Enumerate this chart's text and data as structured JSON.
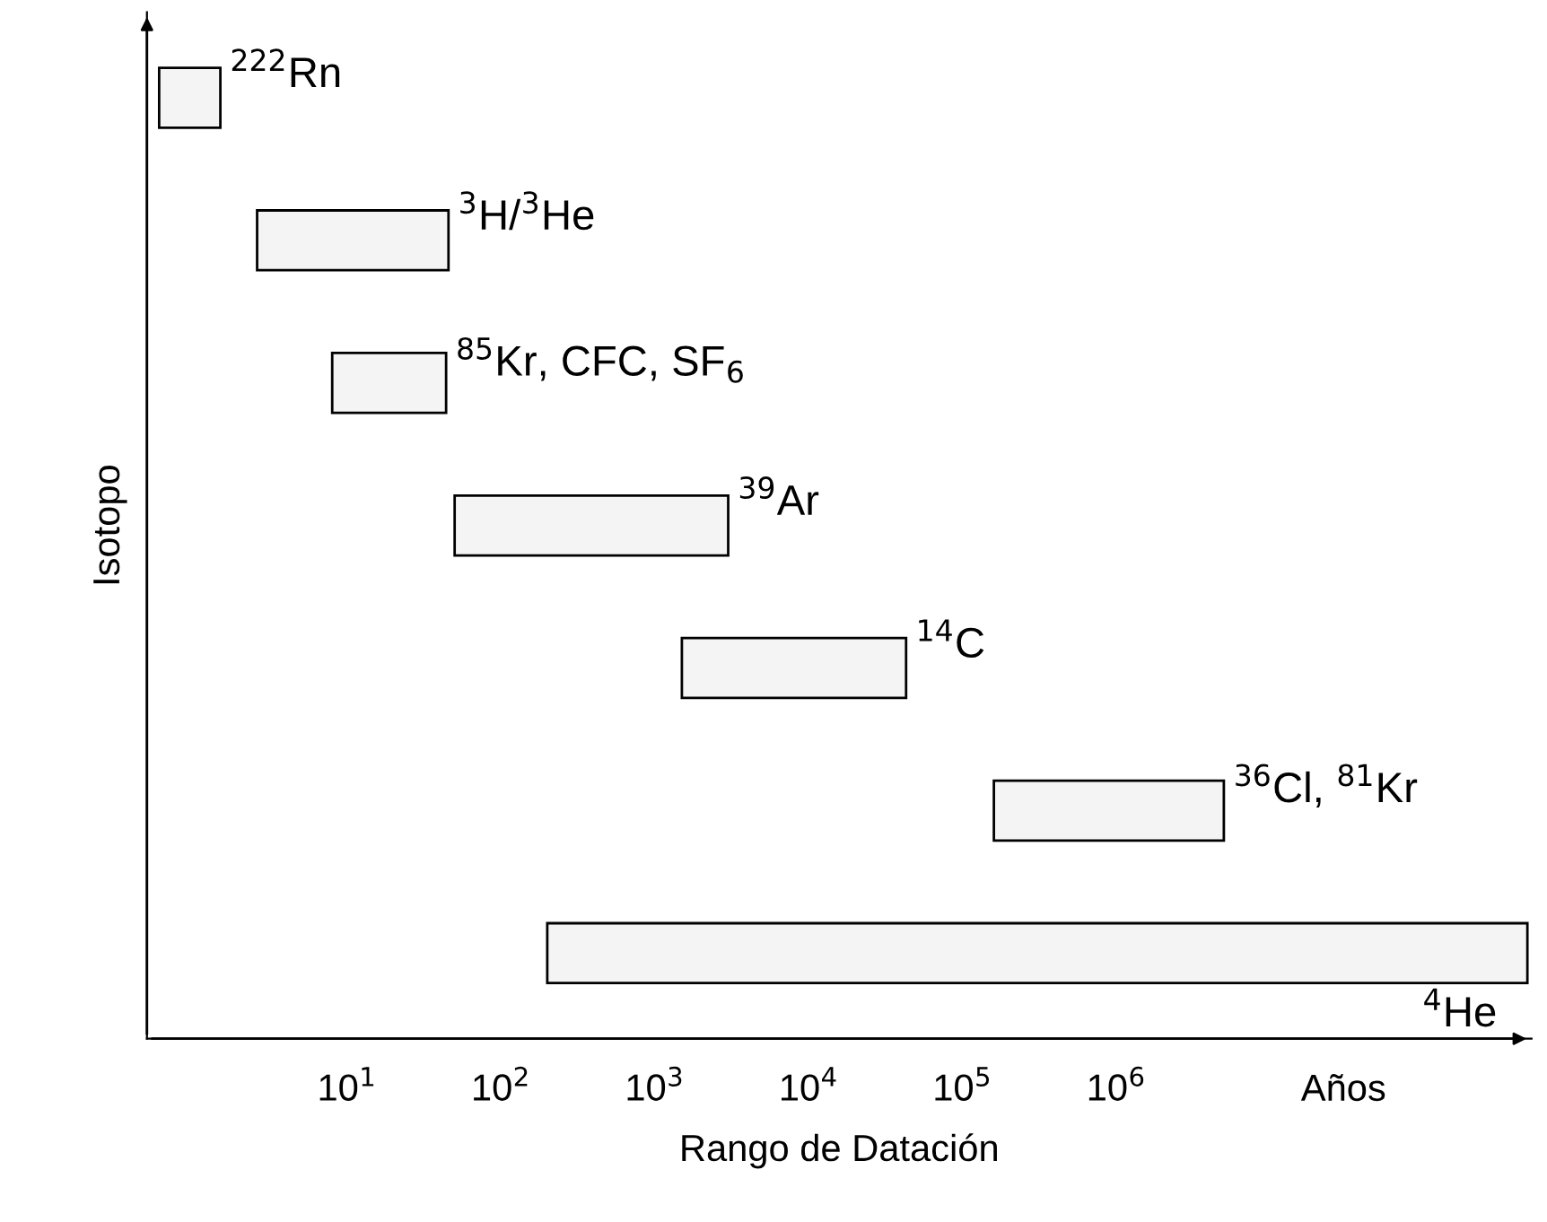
{
  "chart_data": {
    "type": "bar",
    "orientation": "horizontal",
    "log": "x",
    "xlabel": "Rango de Datación",
    "ylabel": "Isotopo",
    "categories": [
      "$^{222}$Rn",
      "$^{3}$H/$^{3}$He",
      "$^{85}$Kr, CFC, SF$_{6}$",
      "$^{39}$Ar",
      "$^{14}$C",
      "$^{36}$Cl, $^{81}$Kr",
      "$^{4}$He"
    ],
    "base": [
      0.6,
      2.6,
      8,
      50,
      1500,
      160000,
      200
    ],
    "values": [
      0.9,
      43,
      36,
      2950,
      41500,
      4840000,
      470000000
    ],
    "color": "#f4f4f4",
    "xlim": [
      0.5,
      500000000
    ],
    "xticks": [
      {
        "value": 10,
        "label": "10$^{1}$"
      },
      {
        "value": 100,
        "label": "10$^{2}$"
      },
      {
        "value": 1000,
        "label": "10$^{3}$"
      },
      {
        "value": 10000,
        "label": "10$^{4}$"
      },
      {
        "value": 100000,
        "label": "10$^{5}$"
      },
      {
        "value": 1000000,
        "label": "10$^{6}$"
      },
      {
        "value": 30000000,
        "label": "Años"
      }
    ],
    "tick_labels": "x",
    "grid": false
  }
}
